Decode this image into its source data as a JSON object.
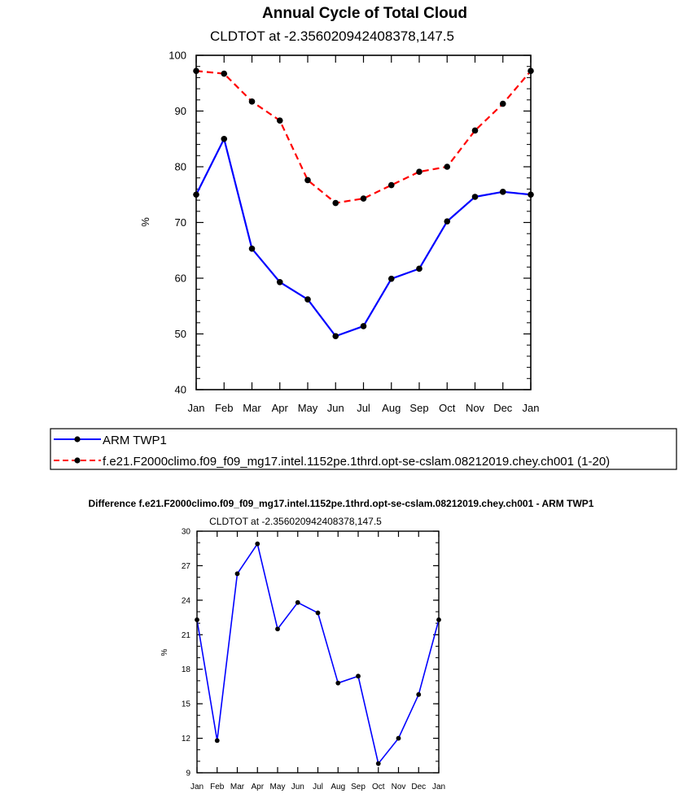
{
  "chart_data": [
    {
      "type": "line",
      "title": "Annual Cycle of Total Cloud",
      "subtitle": "CLDTOT at -2.356020942408378,147.5",
      "xlabel": "",
      "ylabel": "%",
      "ylim": [
        40,
        100
      ],
      "yticks": [
        40,
        50,
        60,
        70,
        80,
        90,
        100
      ],
      "categories": [
        "Jan",
        "Feb",
        "Mar",
        "Apr",
        "May",
        "Jun",
        "Jul",
        "Aug",
        "Sep",
        "Oct",
        "Nov",
        "Dec",
        "Jan"
      ],
      "series": [
        {
          "name": "ARM TWP1",
          "color": "#0000ff",
          "dash": "solid",
          "values": [
            75.0,
            85.0,
            65.3,
            59.3,
            56.2,
            49.6,
            51.4,
            59.9,
            61.7,
            70.2,
            74.6,
            75.5,
            75.0
          ]
        },
        {
          "name": "f.e21.F2000climo.f09_f09_mg17.intel.1152pe.1thrd.opt-se-cslam.08212019.chey.ch001 (1-20)",
          "color": "#ff0000",
          "dash": "dashed",
          "values": [
            97.2,
            96.7,
            91.7,
            88.3,
            77.6,
            73.5,
            74.3,
            76.7,
            79.1,
            80.0,
            86.5,
            91.3,
            97.2
          ]
        }
      ],
      "legend_position": "bottom"
    },
    {
      "type": "line",
      "title": "Difference f.e21.F2000climo.f09_f09_mg17.intel.1152pe.1thrd.opt-se-cslam.08212019.chey.ch001 - ARM TWP1",
      "subtitle": "CLDTOT at -2.356020942408378,147.5",
      "xlabel": "",
      "ylabel": "%",
      "ylim": [
        9,
        30
      ],
      "yticks": [
        9,
        12,
        15,
        18,
        21,
        24,
        27,
        30
      ],
      "categories": [
        "Jan",
        "Feb",
        "Mar",
        "Apr",
        "May",
        "Jun",
        "Jul",
        "Aug",
        "Sep",
        "Oct",
        "Nov",
        "Dec",
        "Jan"
      ],
      "series": [
        {
          "name": "Difference",
          "color": "#0000ff",
          "dash": "solid",
          "values": [
            22.3,
            11.8,
            26.3,
            28.9,
            21.5,
            23.8,
            22.9,
            16.8,
            17.4,
            9.8,
            12.0,
            15.8,
            22.3
          ]
        }
      ]
    }
  ]
}
